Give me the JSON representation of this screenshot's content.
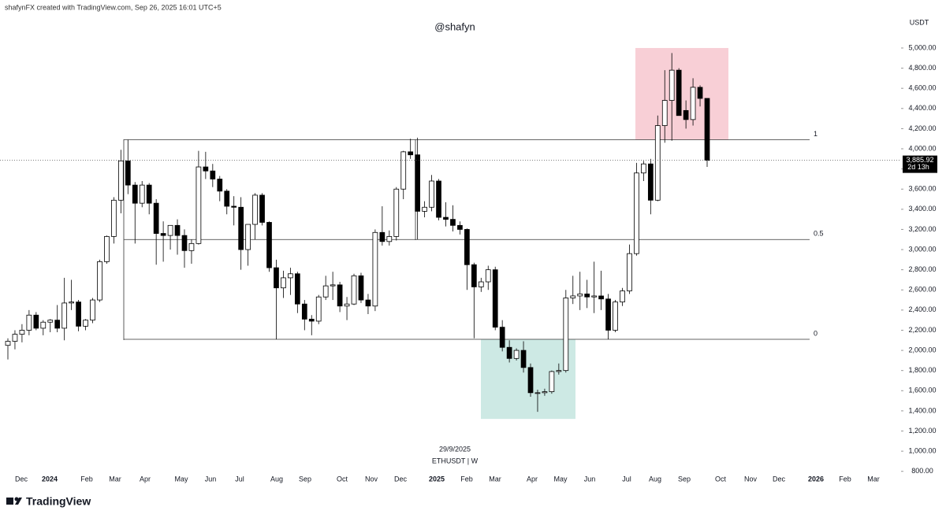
{
  "header": "shafynFX created with TradingView.com, Sep 26, 2025 16:01 UTC+5",
  "brand": "TradingView",
  "chart_data": {
    "type": "candlestick",
    "title": "@shafyn",
    "symbol": "ETHUSDT | W",
    "date_label": "29/9/2025",
    "y_axis_label": "USDT",
    "ylim": [
      790,
      5320
    ],
    "yticks": [
      {
        "value": 800,
        "label": "800.00"
      },
      {
        "value": 1000,
        "label": "1,000.00"
      },
      {
        "value": 1200,
        "label": "1,200.00"
      },
      {
        "value": 1400,
        "label": "1,400.00"
      },
      {
        "value": 1600,
        "label": "1,600.00"
      },
      {
        "value": 1800,
        "label": "1,800.00"
      },
      {
        "value": 2000,
        "label": "2,000.00"
      },
      {
        "value": 2200,
        "label": "2,200.00"
      },
      {
        "value": 2400,
        "label": "2,400.00"
      },
      {
        "value": 2600,
        "label": "2,600.00"
      },
      {
        "value": 2800,
        "label": "2,800.00"
      },
      {
        "value": 3000,
        "label": "3,000.00"
      },
      {
        "value": 3200,
        "label": "3,200.00"
      },
      {
        "value": 3400,
        "label": "3,400.00"
      },
      {
        "value": 3600,
        "label": "3,600.00"
      },
      {
        "value": 3800,
        "label": "3,800.00"
      },
      {
        "value": 4000,
        "label": "4,000.00"
      },
      {
        "value": 4200,
        "label": "4,200.00"
      },
      {
        "value": 4400,
        "label": "4,400.00"
      },
      {
        "value": 4600,
        "label": "4,600.00"
      },
      {
        "value": 4800,
        "label": "4,800.00"
      },
      {
        "value": 5000,
        "label": "5,000.00"
      }
    ],
    "xtick_labels": [
      "Dec",
      "2024",
      "Feb",
      "Mar",
      "Apr",
      "May",
      "Jun",
      "Jul",
      "Aug",
      "Sep",
      "Oct",
      "Nov",
      "Dec",
      "2025",
      "Feb",
      "Mar",
      "Apr",
      "May",
      "Jun",
      "Jul",
      "Aug",
      "Sep",
      "Oct",
      "Nov",
      "Dec",
      "2026",
      "Feb",
      "Mar"
    ],
    "open": [
      2050,
      2090,
      2160,
      2200,
      2350,
      2220,
      2280,
      2300,
      2220,
      2470,
      2480,
      2240,
      2300,
      2500,
      2880,
      3130,
      3490,
      3880,
      3640,
      3460,
      3640,
      3460,
      3160,
      3140,
      3240,
      3140,
      2990,
      3060,
      3820,
      3780,
      3700,
      3580,
      3430,
      3420,
      3000,
      3250,
      3540,
      3270,
      2820,
      2620,
      2720,
      2760,
      2460,
      2310,
      2290,
      2530,
      2640,
      2650,
      2440,
      2460,
      2740,
      2500,
      2440,
      3170,
      3080,
      3130,
      3600,
      3970,
      3940,
      3380,
      3420,
      3680,
      3320,
      3300,
      3240,
      3200,
      2850,
      2630,
      2680,
      2800,
      2230,
      2030,
      1920,
      2000,
      1830,
      1580,
      1580,
      1590,
      1790,
      1800,
      2520,
      2540,
      2560,
      2530,
      2540,
      2510,
      2200,
      2480,
      2590,
      2960,
      3760,
      3850,
      3490,
      4230,
      4480,
      4780,
      4380,
      4290,
      4610,
      4500
    ],
    "high": [
      2120,
      2200,
      2260,
      2400,
      2380,
      2300,
      2310,
      2450,
      2720,
      2700,
      2500,
      2310,
      2520,
      2900,
      3140,
      3520,
      3990,
      4090,
      3670,
      3680,
      3660,
      3500,
      3280,
      3240,
      3300,
      3200,
      3100,
      3980,
      3970,
      3850,
      3730,
      3600,
      3530,
      3520,
      3250,
      3560,
      3560,
      3280,
      2900,
      2790,
      2820,
      2780,
      2500,
      2350,
      2550,
      2740,
      2780,
      2680,
      2530,
      2760,
      2770,
      2560,
      3200,
      3430,
      3190,
      3620,
      3980,
      4100,
      4110,
      3480,
      3740,
      3700,
      3470,
      3440,
      3280,
      3210,
      2870,
      2720,
      2840,
      2830,
      2300,
      2100,
      2020,
      2090,
      1870,
      1610,
      1620,
      1800,
      1870,
      2600,
      2740,
      2780,
      2700,
      2880,
      2790,
      2560,
      2500,
      2620,
      3050,
      3860,
      3880,
      3900,
      4330,
      4780,
      4950,
      4800,
      4480,
      4700,
      4630,
      4500
    ],
    "low": [
      1910,
      2010,
      2080,
      2150,
      2200,
      2150,
      2180,
      2180,
      2100,
      2400,
      2190,
      2200,
      2270,
      2480,
      2860,
      3060,
      3360,
      3550,
      3060,
      3420,
      3350,
      2850,
      2880,
      3000,
      2950,
      2820,
      2860,
      3050,
      3700,
      3620,
      3480,
      3350,
      3240,
      2800,
      2840,
      3100,
      3240,
      2780,
      2110,
      2520,
      2550,
      2370,
      2200,
      2150,
      2260,
      2500,
      2500,
      2380,
      2300,
      2450,
      2470,
      2360,
      2390,
      3040,
      3040,
      3090,
      3500,
      3900,
      3100,
      3320,
      3380,
      3290,
      3230,
      3180,
      3150,
      2600,
      2120,
      2580,
      2600,
      2200,
      1990,
      1880,
      1900,
      1780,
      1540,
      1390,
      1550,
      1570,
      1760,
      1780,
      2460,
      2400,
      2420,
      2370,
      2400,
      2110,
      2180,
      2440,
      2560,
      2940,
      3680,
      3350,
      3480,
      4060,
      4080,
      4330,
      4200,
      4230,
      4420,
      3820
    ],
    "close": [
      2090,
      2160,
      2200,
      2350,
      2220,
      2280,
      2300,
      2220,
      2470,
      2480,
      2240,
      2300,
      2500,
      2880,
      3130,
      3490,
      3880,
      3640,
      3460,
      3640,
      3460,
      3160,
      3140,
      3240,
      3140,
      2990,
      3060,
      3820,
      3780,
      3700,
      3580,
      3430,
      3420,
      3000,
      3250,
      3540,
      3270,
      2820,
      2620,
      2720,
      2760,
      2460,
      2310,
      2290,
      2530,
      2640,
      2650,
      2440,
      2460,
      2740,
      2500,
      2440,
      3170,
      3080,
      3130,
      3600,
      3970,
      3940,
      3380,
      3420,
      3680,
      3320,
      3300,
      3240,
      3200,
      2850,
      2630,
      2680,
      2800,
      2230,
      2030,
      1920,
      2000,
      1830,
      1580,
      1580,
      1590,
      1790,
      1800,
      2520,
      2540,
      2560,
      2530,
      2540,
      2510,
      2200,
      2480,
      2590,
      2960,
      3760,
      3850,
      3490,
      4230,
      4480,
      4780,
      4330,
      4290,
      4610,
      4500,
      3885.92
    ],
    "up_color": "#ffffff",
    "down_color": "#000000",
    "last_price": 3885.92,
    "last_price_label": "3,885.92",
    "countdown": "2d 13h",
    "levels": [
      {
        "value": 4090,
        "label": "1"
      },
      {
        "value": 3100,
        "label": "0.5"
      },
      {
        "value": 2110,
        "label": "0"
      }
    ],
    "zones": [
      {
        "low": 4090,
        "high": 5000,
        "color": "#f8cfd6"
      },
      {
        "low": 1320,
        "high": 2110,
        "color": "#cde9e4"
      }
    ]
  }
}
